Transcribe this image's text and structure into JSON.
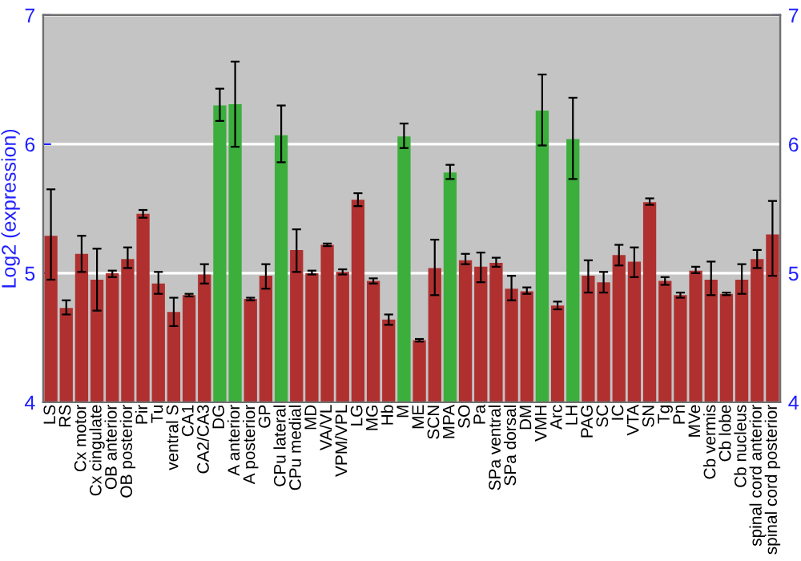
{
  "chart_data": {
    "type": "bar",
    "ylabel": "Log2 (expression)",
    "categories": [
      "LS",
      "RS",
      "Cx motor",
      "Cx cingulate",
      "OB anterior",
      "OB posterior",
      "Pir",
      "Tu",
      "ventral S",
      "CA1",
      "CA2/CA3",
      "DG",
      "A anterior",
      "A posterior",
      "GP",
      "CPu lateral",
      "CPu medial",
      "MD",
      "VA/VL",
      "VPM/VPL",
      "LG",
      "MG",
      "Hb",
      "M",
      "ME",
      "SCN",
      "MPA",
      "SO",
      "Pa",
      "SPa ventral",
      "SPa dorsal",
      "DM",
      "VMH",
      "Arc",
      "LH",
      "PAG",
      "SC",
      "IC",
      "VTA",
      "SN",
      "Tg",
      "Pn",
      "MVe",
      "Cb vermis",
      "Cb lobe",
      "Cb nucleus",
      "spinal cord anterior",
      "spinal cord posterior"
    ],
    "values": [
      5.29,
      4.73,
      5.15,
      4.95,
      5.0,
      5.11,
      5.46,
      4.92,
      4.7,
      4.83,
      4.99,
      6.3,
      6.31,
      4.8,
      4.98,
      6.07,
      5.18,
      5.0,
      5.22,
      5.01,
      5.57,
      4.94,
      4.64,
      6.06,
      4.48,
      5.04,
      5.78,
      5.1,
      5.05,
      5.08,
      4.88,
      4.86,
      6.26,
      4.75,
      6.04,
      4.98,
      4.93,
      5.14,
      5.09,
      5.55,
      4.94,
      4.83,
      5.02,
      4.95,
      4.84,
      4.95,
      5.11,
      5.3
    ],
    "errors": [
      [
        4.95,
        5.65
      ],
      [
        4.68,
        4.79
      ],
      [
        5.01,
        5.29
      ],
      [
        4.71,
        5.19
      ],
      [
        4.97,
        5.02
      ],
      [
        5.04,
        5.2
      ],
      [
        5.43,
        5.49
      ],
      [
        4.84,
        5.01
      ],
      [
        4.59,
        4.81
      ],
      [
        4.82,
        4.84
      ],
      [
        4.92,
        5.07
      ],
      [
        6.18,
        6.43
      ],
      [
        5.98,
        6.64
      ],
      [
        4.79,
        4.81
      ],
      [
        4.88,
        5.07
      ],
      [
        5.86,
        6.3
      ],
      [
        5.01,
        5.34
      ],
      [
        4.99,
        5.02
      ],
      [
        5.21,
        5.23
      ],
      [
        4.99,
        5.03
      ],
      [
        5.52,
        5.62
      ],
      [
        4.92,
        4.96
      ],
      [
        4.6,
        4.68
      ],
      [
        5.97,
        6.16
      ],
      [
        4.47,
        4.49
      ],
      [
        4.83,
        5.26
      ],
      [
        5.73,
        5.84
      ],
      [
        5.07,
        5.15
      ],
      [
        4.93,
        5.16
      ],
      [
        5.05,
        5.12
      ],
      [
        4.79,
        4.98
      ],
      [
        4.84,
        4.89
      ],
      [
        5.99,
        6.54
      ],
      [
        4.72,
        4.78
      ],
      [
        5.73,
        6.36
      ],
      [
        4.85,
        5.1
      ],
      [
        4.85,
        5.01
      ],
      [
        5.06,
        5.22
      ],
      [
        4.97,
        5.2
      ],
      [
        5.53,
        5.58
      ],
      [
        4.91,
        4.97
      ],
      [
        4.81,
        4.85
      ],
      [
        5.0,
        5.05
      ],
      [
        4.83,
        5.09
      ],
      [
        4.83,
        4.85
      ],
      [
        4.84,
        5.07
      ],
      [
        5.04,
        5.18
      ],
      [
        4.98,
        5.56
      ]
    ],
    "colors": [
      "#b03030",
      "#b03030",
      "#b03030",
      "#b03030",
      "#b03030",
      "#b03030",
      "#b03030",
      "#b03030",
      "#b03030",
      "#b03030",
      "#b03030",
      "#3cae3c",
      "#3cae3c",
      "#b03030",
      "#b03030",
      "#3cae3c",
      "#b03030",
      "#b03030",
      "#b03030",
      "#b03030",
      "#b03030",
      "#b03030",
      "#b03030",
      "#3cae3c",
      "#b03030",
      "#b03030",
      "#3cae3c",
      "#b03030",
      "#b03030",
      "#b03030",
      "#b03030",
      "#b03030",
      "#3cae3c",
      "#b03030",
      "#3cae3c",
      "#b03030",
      "#b03030",
      "#b03030",
      "#b03030",
      "#b03030",
      "#b03030",
      "#b03030",
      "#b03030",
      "#b03030",
      "#b03030",
      "#b03030",
      "#b03030",
      "#b03030"
    ],
    "ylim": [
      4,
      7
    ],
    "yticks": [
      4,
      5,
      6,
      7
    ],
    "y2lim": [
      4,
      7
    ],
    "y2ticks": [
      4,
      5,
      6,
      7
    ],
    "grid": "y"
  }
}
